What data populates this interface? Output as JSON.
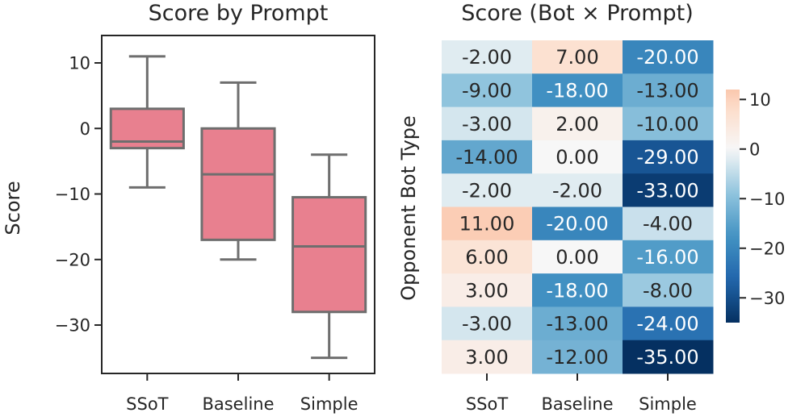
{
  "chart_data": [
    {
      "type": "box",
      "title": "Score by Prompt",
      "xlabel": "",
      "ylabel": "Score",
      "ylim": [
        -37,
        14
      ],
      "yticks": [
        10,
        0,
        -10,
        -20,
        -30
      ],
      "ytick_labels": [
        "10",
        "0",
        "−10",
        "−20",
        "−30"
      ],
      "categories": [
        "SSoT",
        "Baseline",
        "Simple"
      ],
      "color": "#e8808f",
      "edge_color": "#6e6e6e",
      "boxes": [
        {
          "category": "SSoT",
          "whisker_low": -9,
          "q1": -3,
          "median": -2,
          "q3": 3,
          "whisker_high": 11
        },
        {
          "category": "Baseline",
          "whisker_low": -20,
          "q1": -17,
          "median": -7,
          "q3": 0,
          "whisker_high": 7
        },
        {
          "category": "Simple",
          "whisker_low": -35,
          "q1": -28,
          "median": -18,
          "q3": -10.5,
          "whisker_high": -4
        }
      ]
    },
    {
      "type": "heatmap",
      "title": "Score (Bot × Prompt)",
      "xlabel": "",
      "ylabel": "Opponent Bot Type",
      "columns": [
        "SSoT",
        "Baseline",
        "Simple"
      ],
      "row_labels": [],
      "values": [
        [
          -2,
          7,
          -20
        ],
        [
          -9,
          -18,
          -13
        ],
        [
          -3,
          2,
          -10
        ],
        [
          -14,
          0,
          -29
        ],
        [
          -2,
          -2,
          -33
        ],
        [
          11,
          -20,
          -4
        ],
        [
          6,
          0,
          -16
        ],
        [
          3,
          -18,
          -8
        ],
        [
          -3,
          -13,
          -24
        ],
        [
          3,
          -12,
          -35
        ]
      ],
      "cell_labels": [
        [
          "-2.00",
          "7.00",
          "-20.00"
        ],
        [
          "-9.00",
          "-18.00",
          "-13.00"
        ],
        [
          "-3.00",
          "2.00",
          "-10.00"
        ],
        [
          "-14.00",
          "0.00",
          "-29.00"
        ],
        [
          "-2.00",
          "-2.00",
          "-33.00"
        ],
        [
          "11.00",
          "-20.00",
          "-4.00"
        ],
        [
          "6.00",
          "0.00",
          "-16.00"
        ],
        [
          "3.00",
          "-18.00",
          "-8.00"
        ],
        [
          "-3.00",
          "-13.00",
          "-24.00"
        ],
        [
          "3.00",
          "-12.00",
          "-35.00"
        ]
      ],
      "colormap": "RdBu_r",
      "center": 0,
      "vmin": -35,
      "vmax": 12,
      "colorbar": {
        "ticks": [
          10,
          0,
          -10,
          -20,
          -30
        ],
        "tick_labels": [
          "10",
          "0",
          "−10",
          "−20",
          "−30"
        ]
      }
    }
  ]
}
